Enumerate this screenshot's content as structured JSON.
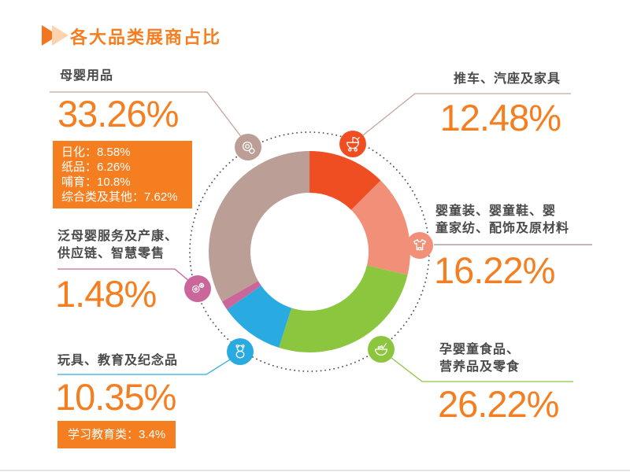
{
  "title": "各大品类展商占比",
  "colors": {
    "accent": "#F57E20",
    "accent_light": "#FBD3AE",
    "text_dark": "#4A4A4C",
    "dotted_ring": "#4D4D4D",
    "background": "#FFFFFF",
    "bottom_edge": "#E6E4E7"
  },
  "chart_data": {
    "type": "pie",
    "variant": "donut",
    "title": "各大品类展商占比",
    "unit": "%",
    "total": 100,
    "start_angle_deg": 0,
    "direction": "clockwise",
    "legend_position": "around-chart",
    "segments": [
      {
        "id": "stroller-carseat-furniture",
        "label": "推车、汽座及家具",
        "label_lines": [
          "推车、汽座及家具"
        ],
        "value": 12.48,
        "display": "12.48%",
        "color": "#EF4E22",
        "icon": "stroller-icon",
        "connector_color": "#C2A69D"
      },
      {
        "id": "apparel-shoes-textiles-accessories",
        "label": "婴童装、婴童鞋、婴童家纺、配饰及原材料",
        "label_lines": [
          "婴童装、婴童鞋、婴",
          "童家纺、配饰及原材料"
        ],
        "value": 16.22,
        "display": "16.22%",
        "color": "#F28F78",
        "icon": "baby-clothes-icon",
        "connector_color": "#9C8D86"
      },
      {
        "id": "food-nutrition-snacks",
        "label": "孕婴童食品、营养品及零食",
        "label_lines": [
          "孕婴童食品、",
          "营养品及零食"
        ],
        "value": 26.22,
        "display": "26.22%",
        "color": "#8CC63F",
        "icon": "food-bowl-icon",
        "connector_color": "#8CC63F"
      },
      {
        "id": "toys-education-souvenirs",
        "label": "玩具、教育及纪念品",
        "label_lines": [
          "玩具、教育及纪念品"
        ],
        "value": 10.35,
        "display": "10.35%",
        "color": "#29ABE2",
        "icon": "teddy-bear-icon",
        "connector_color": "#29ABE2",
        "sub_lines": [
          "学习教育类：3.4%"
        ]
      },
      {
        "id": "services-supplychain-smart-retail",
        "label": "泛母婴服务及产康、供应链、智慧零售",
        "label_lines": [
          "泛母婴服务及产康、",
          "供应链、智慧零售"
        ],
        "value": 1.48,
        "display": "1.48%",
        "color": "#CB669B",
        "icon": "gears-icon",
        "connector_color": "#CB669B"
      },
      {
        "id": "maternal-baby-products",
        "label": "母婴用品",
        "label_lines": [
          "母婴用品"
        ],
        "value": 33.26,
        "display": "33.26%",
        "color": "#BB9E96",
        "icon": "pacifier-icon",
        "connector_color": "#C2A69D",
        "sub_lines": [
          "日化：8.58%",
          "纸品：6.26%",
          "哺育：10.8%",
          "综合类及其他：7.62%"
        ]
      }
    ]
  }
}
